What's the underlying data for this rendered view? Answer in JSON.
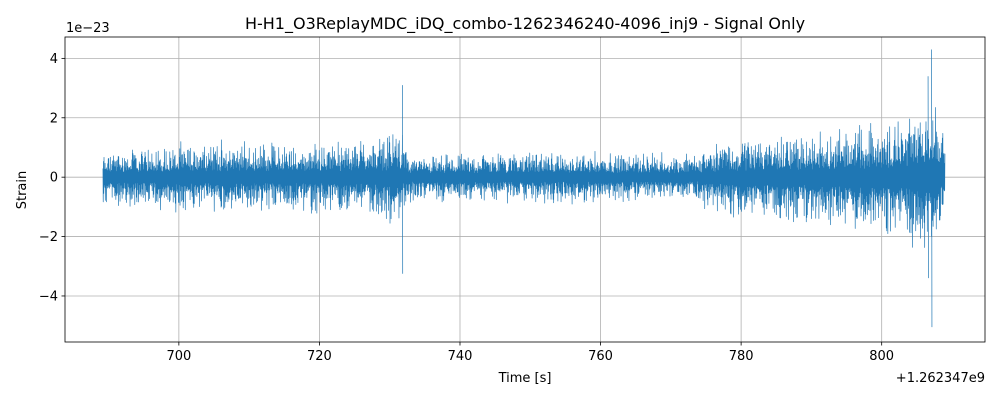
{
  "figure": {
    "title": "H-H1_O3ReplayMDC_iDQ_combo-1262346240-4096_inj9 - Signal Only",
    "xlabel": "Time [s]",
    "ylabel": "Strain",
    "y_scale_label": "1e−23",
    "x_offset_label": "+1.262347e9"
  },
  "chart_data": {
    "type": "line",
    "title": "H-H1_O3ReplayMDC_iDQ_combo-1262346240-4096_inj9 - Signal Only",
    "xlabel": "Time [s]",
    "ylabel": "Strain",
    "x_offset": 1262347000,
    "y_multiplier": 1e-23,
    "xlim": [
      683.8,
      814.7
    ],
    "ylim": [
      -5.55,
      4.72
    ],
    "grid": true,
    "line_color": "#1f77b4",
    "x_ticks": [
      700,
      720,
      740,
      760,
      780,
      800
    ],
    "x_tick_labels": [
      "700",
      "720",
      "740",
      "760",
      "780",
      "800"
    ],
    "y_ticks": [
      -4,
      -2,
      0,
      2,
      4
    ],
    "y_tick_labels": [
      "−4",
      "−2",
      "0",
      "2",
      "4"
    ],
    "series": [
      {
        "x_range": [
          689.2,
          809.0
        ],
        "envelope": {
          "x": [
            689.2,
            695,
            700,
            705,
            710,
            715,
            720,
            725,
            729,
            731.5,
            732.0,
            733,
            740,
            750,
            760,
            770,
            774,
            775,
            780,
            790,
            800,
            805,
            807.0,
            808,
            809.0
          ],
          "high": [
            0.95,
            1.1,
            1.25,
            1.35,
            1.3,
            1.25,
            1.25,
            1.35,
            1.45,
            1.9,
            1.3,
            0.8,
            0.85,
            0.95,
            0.95,
            0.85,
            0.9,
            1.2,
            1.45,
            1.7,
            1.9,
            2.3,
            2.9,
            2.4,
            1.25
          ],
          "low": [
            -1.0,
            -1.15,
            -1.25,
            -1.35,
            -1.3,
            -1.3,
            -1.35,
            -1.35,
            -1.5,
            -2.1,
            -1.3,
            -0.85,
            -0.9,
            -0.95,
            -0.95,
            -0.9,
            -0.9,
            -1.2,
            -1.5,
            -1.8,
            -2.1,
            -2.6,
            -3.3,
            -2.5,
            -1.3
          ]
        },
        "spikes": [
          {
            "x": 731.8,
            "high": 3.1,
            "low": -3.25
          },
          {
            "x": 807.1,
            "high": 4.3,
            "low": -5.05
          },
          {
            "x": 806.6,
            "high": 3.4,
            "low": -3.4
          }
        ]
      }
    ]
  }
}
